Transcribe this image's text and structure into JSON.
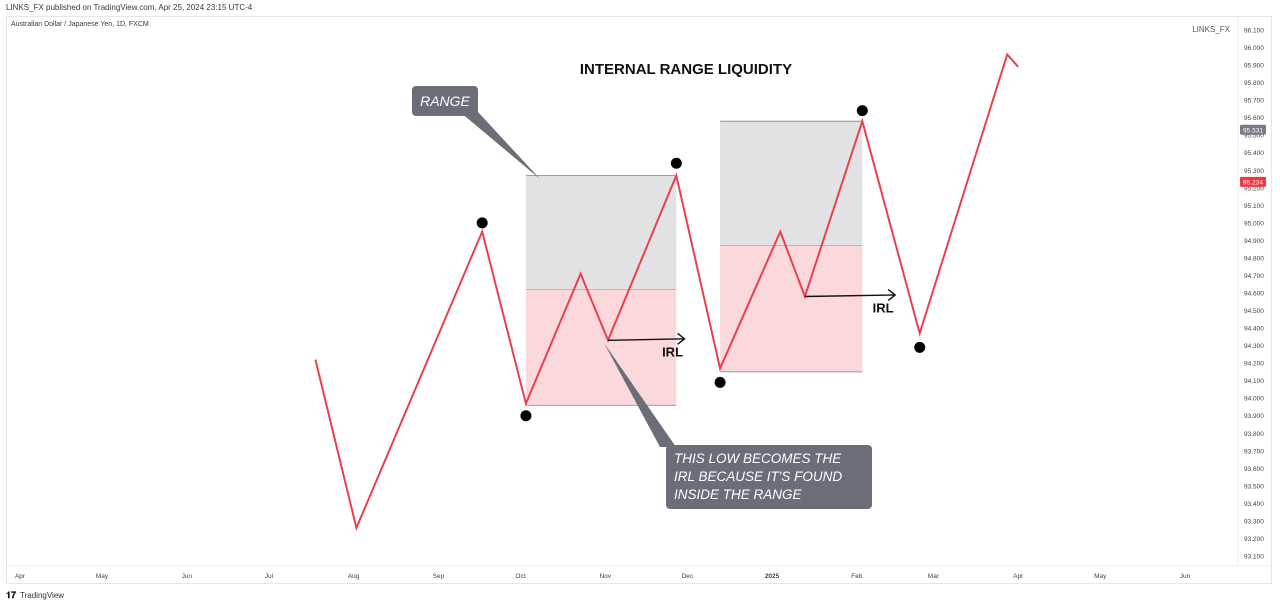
{
  "header": {
    "published": "LINKS_FX published on TradingView.com, Apr 25, 2024 23:15 UTC-4",
    "symbol": "Australian Dollar / Japanese Yen, 1D, FXCM",
    "watermark": "LINKS_FX"
  },
  "footer": {
    "logo_icon": "tradingview-logo-icon",
    "brand": "TradingView"
  },
  "chart_data": {
    "type": "line",
    "title": "INTERNAL RANGE LIQUIDITY",
    "xlabel": "",
    "ylabel": "",
    "ylim": [
      93.05,
      96.15
    ],
    "x_ticks": [
      "Apr",
      "May",
      "Jun",
      "Jul",
      "Aug",
      "Sep",
      "Oct",
      "Nov",
      "Dec",
      "2025",
      "Feb",
      "Mar",
      "Apr",
      "May",
      "Jun"
    ],
    "y_ticks": [
      "93.100",
      "93.200",
      "93.300",
      "93.400",
      "93.500",
      "93.600",
      "93.700",
      "93.800",
      "93.900",
      "94.000",
      "94.100",
      "94.200",
      "94.300",
      "94.400",
      "94.500",
      "94.600",
      "94.700",
      "94.800",
      "94.900",
      "95.000",
      "95.100",
      "95.200",
      "95.300",
      "95.400",
      "95.500",
      "95.600",
      "95.700",
      "95.800",
      "95.900",
      "96.000",
      "96.100"
    ],
    "price_tags": [
      {
        "label": "95.531",
        "value": 95.531,
        "color": "#787b86"
      },
      {
        "label": "95.234",
        "value": 95.234,
        "color": "#f23645"
      }
    ],
    "line_color": "#e8414e",
    "series": [
      {
        "x": [
          "2024-07-18",
          "2024-08-02",
          "2024-09-17",
          "2024-10-03",
          "2024-10-23",
          "2024-11-02",
          "2024-11-27",
          "2024-12-13",
          "2025-01-04",
          "2025-01-13",
          "2025-02-03",
          "2025-02-24",
          "2025-03-28",
          "2025-04-01"
        ],
        "values": [
          94.22,
          93.26,
          94.95,
          93.97,
          94.71,
          94.33,
          95.27,
          94.17,
          94.95,
          94.58,
          95.58,
          94.37,
          95.96,
          95.89
        ]
      }
    ],
    "swing_points": [
      {
        "x": "2024-09-17",
        "value": 95.0,
        "kind": "high"
      },
      {
        "x": "2024-10-03",
        "value": 93.9,
        "kind": "low"
      },
      {
        "x": "2024-11-27",
        "value": 95.34,
        "kind": "high"
      },
      {
        "x": "2024-12-13",
        "value": 94.09,
        "kind": "low"
      },
      {
        "x": "2025-02-03",
        "value": 95.64,
        "kind": "high"
      },
      {
        "x": "2025-02-24",
        "value": 94.29,
        "kind": "low"
      }
    ],
    "ranges": [
      {
        "x_start": "2024-10-03",
        "x_end": "2024-11-27",
        "high": 95.27,
        "mid": 94.62,
        "low": 93.96
      },
      {
        "x_start": "2024-12-13",
        "x_end": "2025-02-03",
        "high": 95.58,
        "mid": 94.87,
        "low": 94.15
      }
    ],
    "irl_arrows": [
      {
        "label": "IRL",
        "x_start": "2024-11-02",
        "x_end": "2024-11-30",
        "value": 94.33
      },
      {
        "label": "IRL",
        "x_start": "2025-01-13",
        "x_end": "2025-02-15",
        "value": 94.58
      }
    ],
    "annotations": [
      {
        "text": "RANGE",
        "color": "#6b6e76"
      },
      {
        "text": "THIS LOW BECOMES THE IRL BECAUSE IT'S FOUND INSIDE THE RANGE",
        "color": "#6b6e76"
      }
    ]
  }
}
